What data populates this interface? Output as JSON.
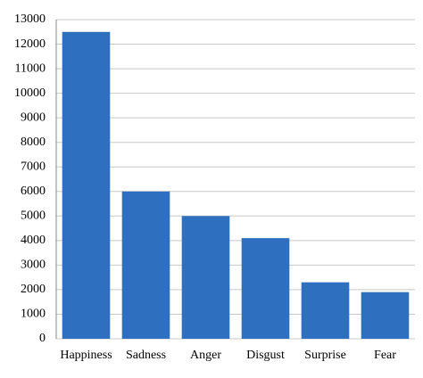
{
  "chart_data": {
    "type": "bar",
    "categories": [
      "Happiness",
      "Sadness",
      "Anger",
      "Disgust",
      "Surprise",
      "Fear"
    ],
    "values": [
      12500,
      6000,
      5000,
      4100,
      2300,
      1900
    ],
    "color": "#2f6fc0",
    "ylim": [
      0,
      13000
    ],
    "yticks": [
      0,
      1000,
      2000,
      3000,
      4000,
      5000,
      6000,
      7000,
      8000,
      9000,
      10000,
      11000,
      12000,
      13000
    ],
    "grid": true
  }
}
